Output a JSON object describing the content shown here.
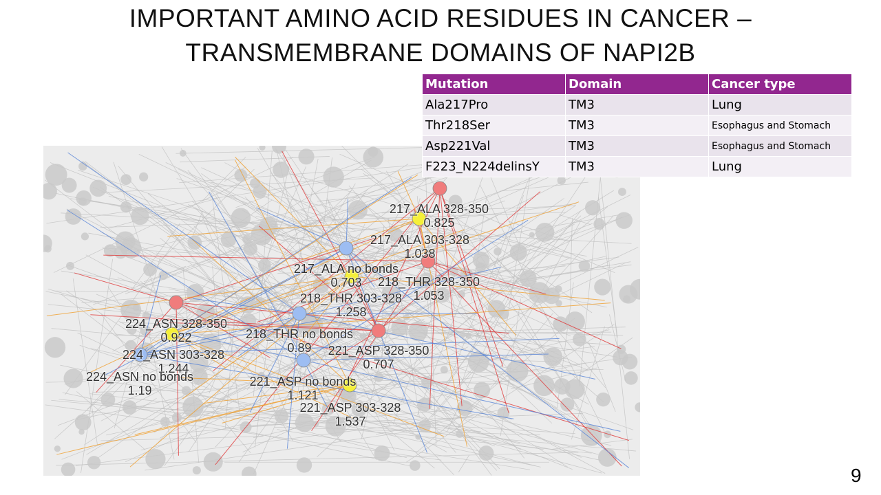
{
  "header": {
    "title_lines": [
      "IMPORTANT AMINO ACID RESIDUES IN CANCER –",
      "TRANSMEMBRANE DOMAINS OF NAPI2B"
    ]
  },
  "table": {
    "columns": [
      "Mutation",
      "Domain",
      "Cancer type"
    ],
    "rows": [
      [
        "Ala217Pro",
        "TM3",
        "Lung"
      ],
      [
        "Thr218Ser",
        "TM3",
        "Esophagus and Stomach"
      ],
      [
        "Asp221Val",
        "TM3",
        "Esophagus and Stomach"
      ],
      [
        "F223_N224delinsY",
        "TM3",
        "Lung"
      ]
    ]
  },
  "network": {
    "labels": [
      {
        "name": "217_ALA 328-350",
        "value": "0.825"
      },
      {
        "name": "217_ALA 303-328",
        "value": "1.038"
      },
      {
        "name": "217_ALA no bonds",
        "value": "0.703"
      },
      {
        "name": "218_THR 328-350",
        "value": "1.053"
      },
      {
        "name": "218_THR 303-328",
        "value": "1.258"
      },
      {
        "name": "224_ASN 328-350",
        "value": "0.922"
      },
      {
        "name": "218_THR no bonds",
        "value": "0.89"
      },
      {
        "name": "221_ASP 328-350",
        "value": "0.707"
      },
      {
        "name": "224_ASN 303-328",
        "value": "1.244"
      },
      {
        "name": "224_ASN no bonds",
        "value": "1.19"
      },
      {
        "name": "221_ASP no bonds",
        "value": "1.121"
      },
      {
        "name": "221_ASP 303-328",
        "value": "1.537"
      }
    ]
  },
  "page_number": "9"
}
